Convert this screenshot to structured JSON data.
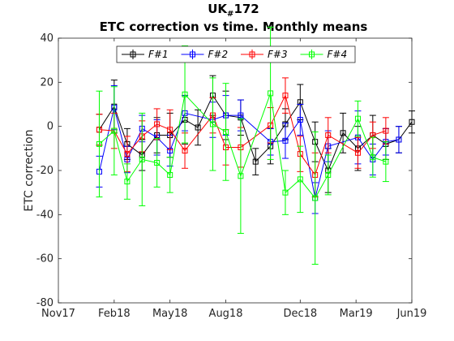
{
  "chart_data": {
    "type": "line",
    "title_main": "UK",
    "title_sub": "#",
    "title_num": "172",
    "subtitle": "ETC correction vs time. Monthly means",
    "xlabel": "",
    "ylabel": "ETC correction",
    "ylim": [
      -80,
      40
    ],
    "yticks": [
      -80,
      -60,
      -40,
      -20,
      0,
      20,
      40
    ],
    "xlim_months": [
      0,
      19
    ],
    "xticks": [
      {
        "label": "Nov17",
        "month": 0
      },
      {
        "label": "Feb18",
        "month": 3
      },
      {
        "label": "May18",
        "month": 6
      },
      {
        "label": "Aug18",
        "month": 9
      },
      {
        "label": "Dec18",
        "month": 13
      },
      {
        "label": "Mar19",
        "month": 16
      },
      {
        "label": "Jun19",
        "month": 19
      }
    ],
    "grid": false,
    "legend_position": "top-center",
    "x_months": [
      2.2,
      3.0,
      3.7,
      4.5,
      5.3,
      6.0,
      6.8,
      7.5,
      8.3,
      9.0,
      9.8,
      10.6,
      11.4,
      12.2,
      13.0,
      13.8,
      14.5,
      15.3,
      16.1,
      16.9,
      17.6,
      18.3,
      19.0
    ],
    "series": [
      {
        "name": "F#1",
        "color": "#000000",
        "y": [
          -1.5,
          9,
          -8,
          -13,
          -4,
          -4,
          3,
          -0.5,
          14,
          5,
          4,
          -16,
          -9,
          1,
          11,
          -7,
          -20,
          -3,
          -10,
          -4,
          -8,
          -6,
          2
        ],
        "err": [
          7,
          12,
          7,
          7,
          8,
          10,
          11,
          8,
          9,
          11,
          8,
          6,
          8,
          7,
          8,
          9,
          10,
          9,
          10,
          9,
          7,
          6,
          5
        ]
      },
      {
        "name": "F#2",
        "color": "#0000ff",
        "y": [
          -20.5,
          8.5,
          -15,
          -1,
          -5,
          -11,
          6,
          3,
          5,
          5,
          -7,
          -6.5,
          3,
          -32.5,
          -9,
          -5,
          -15,
          -7,
          -6
        ],
        "err": [
          7,
          10,
          6,
          6,
          8,
          7,
          8,
          8,
          9,
          7,
          6,
          8,
          7,
          7,
          7,
          12,
          7,
          6,
          6
        ],
        "x_months": [
          2.2,
          3.0,
          3.7,
          4.5,
          5.3,
          6.0,
          6.8,
          8.3,
          9.0,
          9.8,
          11.4,
          12.2,
          13.0,
          13.8,
          14.5,
          16.1,
          16.9,
          17.6,
          18.3
        ]
      },
      {
        "name": "F#3",
        "color": "#ff0000",
        "y": [
          -1.5,
          -2,
          -12.5,
          -4.5,
          1,
          -1.5,
          -11,
          5,
          -9.5,
          -9.5,
          0.5,
          14,
          -12.5,
          -22,
          -4,
          -12,
          -4,
          -2
        ],
        "err": [
          7,
          8,
          8,
          7,
          7,
          9,
          8,
          8,
          8,
          9,
          8,
          8,
          8,
          10,
          8,
          7,
          6,
          6
        ],
        "x_months": [
          2.2,
          3.0,
          3.7,
          4.5,
          5.3,
          6.0,
          6.8,
          8.3,
          9.0,
          9.8,
          11.4,
          12.2,
          13.0,
          13.8,
          14.5,
          16.1,
          16.9,
          17.6
        ]
      },
      {
        "name": "F#4",
        "color": "#00ff00",
        "y": [
          -8,
          -2,
          -25,
          -15,
          -16.5,
          -22,
          14.5,
          1,
          -2.5,
          -22.5,
          15,
          -30,
          -24,
          -32.5,
          -22,
          3.5,
          -14,
          -16
        ],
        "err": [
          24,
          20,
          8,
          21,
          11,
          8,
          22,
          21,
          22,
          26,
          30,
          10,
          15,
          30,
          9,
          8,
          9,
          9
        ],
        "x_months": [
          2.2,
          3.0,
          3.7,
          4.5,
          5.3,
          6.0,
          6.8,
          8.3,
          9.0,
          9.8,
          11.4,
          12.2,
          13.0,
          13.8,
          14.5,
          16.1,
          16.9,
          17.6
        ]
      }
    ]
  }
}
